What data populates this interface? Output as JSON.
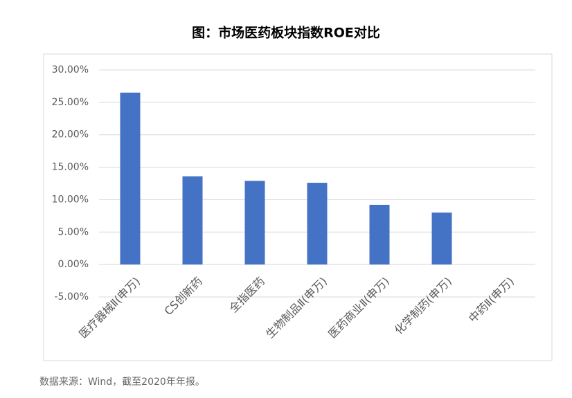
{
  "chart_data": {
    "type": "bar",
    "title": "图：市场医药板块指数ROE对比",
    "categories": [
      "医疗器械Ⅱ(申万)",
      "CS创新药",
      "全指医药",
      "生物制品Ⅱ(申万)",
      "医药商业Ⅱ(申万)",
      "化学制药(申万)",
      "中药Ⅱ(申万)"
    ],
    "values": [
      26.5,
      13.6,
      12.9,
      12.6,
      9.2,
      8.0,
      null
    ],
    "color": "#4472c4",
    "ylim": [
      -5,
      30
    ],
    "yticks": [
      {
        "value": -5,
        "label": "-5.00%"
      },
      {
        "value": 0,
        "label": "0.00%"
      },
      {
        "value": 5,
        "label": "5.00%"
      },
      {
        "value": 10,
        "label": "10.00%"
      },
      {
        "value": 15,
        "label": "15.00%"
      },
      {
        "value": 20,
        "label": "20.00%"
      },
      {
        "value": 25,
        "label": "25.00%"
      },
      {
        "value": 30,
        "label": "30.00%"
      }
    ],
    "grid": true,
    "source": "数据来源：Wind，截至2020年年报。"
  }
}
